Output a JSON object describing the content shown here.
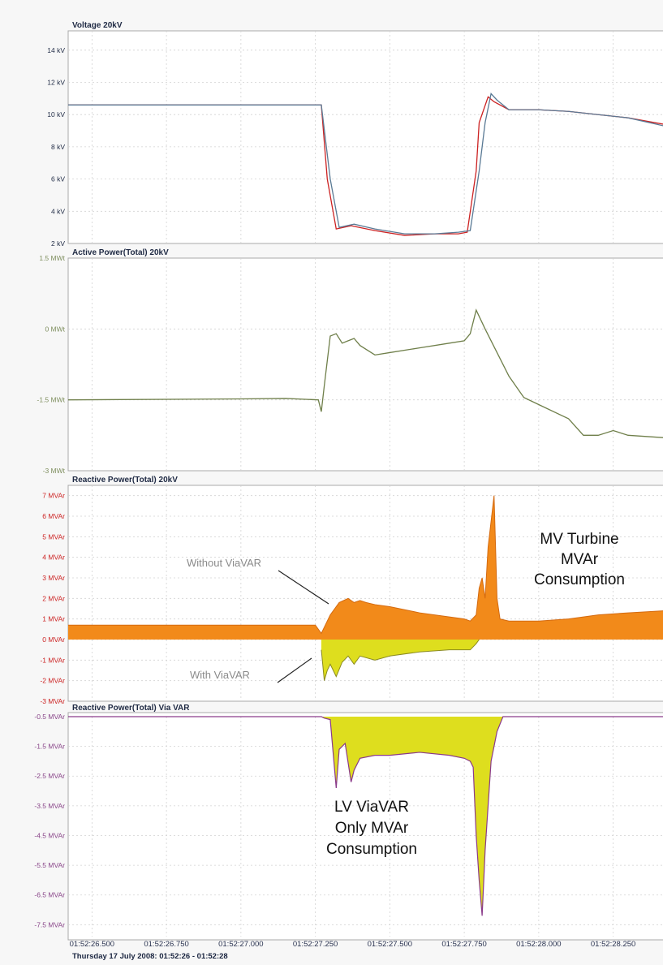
{
  "colors": {
    "voltage_red": "#cc2222",
    "voltage_blue": "#5a7a95",
    "active_green": "#6f7f4a",
    "reactive_orange": "#f28a1a",
    "reactive_yellow": "#dede1e",
    "via_purple": "#8a3a8a",
    "tick_blue": "#1f2a44",
    "tick_green": "#7f8f5f",
    "tick_red": "#cc2222",
    "tick_purple": "#884488"
  },
  "chart_data": [
    {
      "type": "line",
      "title": "Voltage 20kV",
      "ytick_labels": [
        "2 kV",
        "4 kV",
        "6 kV",
        "8 kV",
        "10 kV",
        "12 kV",
        "14 kV"
      ],
      "yticks": [
        2,
        4,
        6,
        8,
        10,
        12,
        14
      ],
      "ylim": [
        2,
        15.2
      ],
      "xlim": [
        26.42,
        28.42
      ],
      "series": [
        {
          "color": "#cc2222",
          "x": [
            26.42,
            26.9,
            27.15,
            27.2,
            27.27,
            27.29,
            27.32,
            27.37,
            27.45,
            27.55,
            27.65,
            27.73,
            27.76,
            27.79,
            27.8,
            27.83,
            27.85,
            27.9,
            28.0,
            28.1,
            28.2,
            28.3,
            28.42
          ],
          "y": [
            10.6,
            10.6,
            10.6,
            10.6,
            10.6,
            6.0,
            2.9,
            3.1,
            2.8,
            2.5,
            2.6,
            2.6,
            2.7,
            6.5,
            9.5,
            11.1,
            10.8,
            10.3,
            10.3,
            10.2,
            10.0,
            9.8,
            9.4
          ]
        },
        {
          "color": "#5a7a95",
          "x": [
            26.42,
            26.9,
            27.15,
            27.2,
            27.27,
            27.3,
            27.33,
            27.38,
            27.45,
            27.55,
            27.65,
            27.73,
            27.77,
            27.8,
            27.82,
            27.84,
            27.86,
            27.9,
            28.0,
            28.1,
            28.2,
            28.3,
            28.42
          ],
          "y": [
            10.6,
            10.6,
            10.6,
            10.6,
            10.6,
            6.0,
            3.0,
            3.2,
            2.9,
            2.6,
            2.6,
            2.7,
            2.8,
            6.5,
            9.5,
            11.3,
            10.9,
            10.3,
            10.3,
            10.2,
            10.0,
            9.8,
            9.3
          ]
        }
      ]
    },
    {
      "type": "line",
      "title": "Active Power(Total) 20kV",
      "ytick_labels": [
        "-3 MWt",
        "-1.5 MWt",
        "0 MWt",
        "1.5 MWt"
      ],
      "yticks": [
        -3,
        -1.5,
        0,
        1.5
      ],
      "ylim": [
        -3,
        1.5
      ],
      "xlim": [
        26.42,
        28.42
      ],
      "series": [
        {
          "color": "#6f7f4a",
          "x": [
            26.42,
            27.0,
            27.15,
            27.26,
            27.27,
            27.28,
            27.3,
            27.32,
            27.34,
            27.36,
            27.38,
            27.4,
            27.45,
            27.5,
            27.6,
            27.7,
            27.75,
            27.77,
            27.79,
            27.82,
            27.86,
            27.9,
            27.95,
            28.0,
            28.1,
            28.15,
            28.2,
            28.25,
            28.3,
            28.42
          ],
          "y": [
            -1.5,
            -1.48,
            -1.47,
            -1.5,
            -1.75,
            -1.2,
            -0.15,
            -0.1,
            -0.3,
            -0.25,
            -0.2,
            -0.35,
            -0.55,
            -0.5,
            -0.4,
            -0.3,
            -0.25,
            -0.1,
            0.4,
            0.0,
            -0.5,
            -1.0,
            -1.45,
            -1.6,
            -1.9,
            -2.25,
            -2.25,
            -2.15,
            -2.25,
            -2.3
          ]
        }
      ]
    },
    {
      "type": "area",
      "title": "Reactive Power(Total) 20kV",
      "ytick_labels": [
        "-3 MVAr",
        "-2 MVAr",
        "-1 MVAr",
        "0 MVAr",
        "1 MVAr",
        "2 MVAr",
        "3 MVAr",
        "4 MVAr",
        "5 MVAr",
        "6 MVAr",
        "7 MVAr"
      ],
      "yticks": [
        -3,
        -2,
        -1,
        0,
        1,
        2,
        3,
        4,
        5,
        6,
        7
      ],
      "ylim": [
        -3,
        7.5
      ],
      "xlim": [
        26.42,
        28.42
      ],
      "series": [
        {
          "name": "Without ViaVAR",
          "color": "#f28a1a",
          "x": [
            26.42,
            27.1,
            27.25,
            27.27,
            27.28,
            27.3,
            27.33,
            27.36,
            27.38,
            27.4,
            27.42,
            27.45,
            27.5,
            27.6,
            27.7,
            27.75,
            27.77,
            27.79,
            27.8,
            27.81,
            27.82,
            27.83,
            27.85,
            27.86,
            27.87,
            27.9,
            28.0,
            28.1,
            28.2,
            28.3,
            28.42
          ],
          "y": [
            0.7,
            0.7,
            0.7,
            0.3,
            0.6,
            1.2,
            1.8,
            2.0,
            1.8,
            1.9,
            1.8,
            1.7,
            1.6,
            1.3,
            1.1,
            1.0,
            0.9,
            1.2,
            2.5,
            3.0,
            2.0,
            4.5,
            7.0,
            2.0,
            1.0,
            0.9,
            0.9,
            1.0,
            1.2,
            1.3,
            1.4
          ]
        },
        {
          "name": "With ViaVAR",
          "color": "#dede1e",
          "x": [
            27.27,
            27.28,
            27.29,
            27.3,
            27.32,
            27.34,
            27.36,
            27.38,
            27.4,
            27.45,
            27.5,
            27.6,
            27.7,
            27.77,
            27.79,
            27.8
          ],
          "y": [
            -0.5,
            -2.0,
            -1.5,
            -1.2,
            -1.8,
            -1.1,
            -0.8,
            -1.2,
            -0.8,
            -1.0,
            -0.8,
            -0.6,
            -0.5,
            -0.5,
            -0.2,
            0.0
          ]
        }
      ]
    },
    {
      "type": "area",
      "title": "Reactive Power(Total) Via VAR",
      "ytick_labels": [
        "-7.5 MVAr",
        "-6.5 MVAr",
        "-5.5 MVAr",
        "-4.5 MVAr",
        "-3.5 MVAr",
        "-2.5 MVAr",
        "-1.5 MVAr",
        "-0.5 MVAr"
      ],
      "yticks": [
        -7.5,
        -6.5,
        -5.5,
        -4.5,
        -3.5,
        -2.5,
        -1.5,
        -0.5
      ],
      "ylim": [
        -7.9,
        -0.5
      ],
      "xlim": [
        26.42,
        28.42
      ],
      "series": [
        {
          "color": "#8a3a8a",
          "fill": "#dede1e",
          "x": [
            26.42,
            27.25,
            27.27,
            27.28,
            27.3,
            27.32,
            27.33,
            27.35,
            27.37,
            27.38,
            27.4,
            27.45,
            27.5,
            27.6,
            27.7,
            27.75,
            27.77,
            27.78,
            27.79,
            27.8,
            27.81,
            27.82,
            27.83,
            27.84,
            27.86,
            27.88,
            27.9,
            28.0,
            28.42
          ],
          "y": [
            -0.5,
            -0.5,
            -0.5,
            -0.55,
            -0.6,
            -2.9,
            -1.6,
            -1.4,
            -2.7,
            -2.3,
            -1.9,
            -1.8,
            -1.8,
            -1.7,
            -1.8,
            -1.9,
            -2.0,
            -2.2,
            -4.5,
            -6.0,
            -7.2,
            -5.0,
            -3.5,
            -2.0,
            -1.0,
            -0.5,
            -0.5,
            -0.5,
            -0.5
          ]
        }
      ]
    }
  ],
  "x_axis": {
    "tick_labels": [
      "01:52:26.500",
      "01:52:26.750",
      "01:52:27.000",
      "01:52:27.250",
      "01:52:27.500",
      "01:52:27.750",
      "01:52:28.000",
      "01:52:28.250"
    ],
    "tick_values": [
      26.5,
      26.75,
      27.0,
      27.25,
      27.5,
      27.75,
      28.0,
      28.25
    ],
    "footer": "Thursday 17 July 2008: 01:52:26 - 01:52:28"
  },
  "annotations": {
    "without_label": "Without   ViaVAR",
    "with_label": "With   ViaVAR",
    "mv_lines": [
      "MV Turbine",
      "MVAr",
      "Consumption"
    ],
    "lv_lines": [
      "LV ViaVAR",
      "Only MVAr",
      "Consumption"
    ]
  }
}
